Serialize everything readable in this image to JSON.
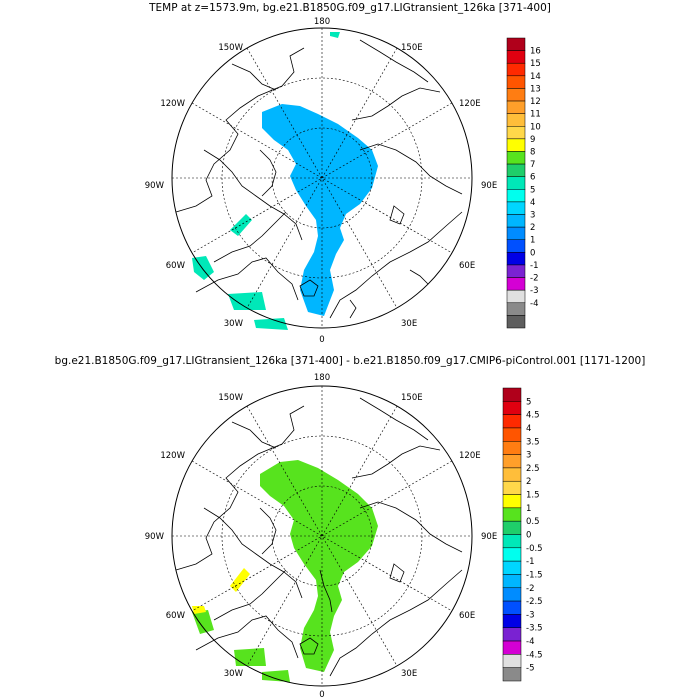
{
  "panels": [
    {
      "title": "TEMP at z=1573.9m, bg.e21.B1850G.f09_g17.LIGtransient_126ka [371-400]",
      "longitude_labels": [
        "180",
        "150E",
        "120E",
        "90E",
        "60E",
        "30E",
        "0",
        "30W",
        "60W",
        "90W",
        "120W",
        "150W"
      ],
      "colorbar": {
        "labels": [
          "16",
          "15",
          "14",
          "13",
          "12",
          "11",
          "10",
          "9",
          "8",
          "7",
          "6",
          "5",
          "4",
          "3",
          "2",
          "1",
          "0",
          "-1",
          "-2",
          "-3",
          "-4"
        ],
        "colors": [
          "#b0001b",
          "#e00010",
          "#ff2a00",
          "#ff5500",
          "#ff7d12",
          "#ff9f2a",
          "#ffbe3a",
          "#ffd84a",
          "#ffff00",
          "#57e31e",
          "#1fce6a",
          "#00e8b8",
          "#00ffee",
          "#00d6ff",
          "#00b6ff",
          "#008cff",
          "#0050ff",
          "#0000e6",
          "#7a22d2",
          "#d400d4",
          "#e0e0e0",
          "#8a8a8a",
          "#5e5e5e"
        ]
      }
    },
    {
      "title": "bg.e21.B1850G.f09_g17.LIGtransient_126ka [371-400] - b.e21.B1850.f09_g17.CMIP6-piControl.001 [1171-1200]",
      "longitude_labels": [
        "180",
        "150E",
        "120E",
        "90E",
        "60E",
        "30E",
        "0",
        "30W",
        "60W",
        "90W",
        "120W",
        "150W"
      ],
      "colorbar": {
        "labels": [
          "5",
          "4.5",
          "4",
          "3.5",
          "3",
          "2.5",
          "2",
          "1.5",
          "1",
          "0.5",
          "0",
          "-0.5",
          "-1",
          "-1.5",
          "-2",
          "-2.5",
          "-3",
          "-3.5",
          "-4",
          "-4.5",
          "-5"
        ],
        "colors": [
          "#b0001b",
          "#e00010",
          "#ff2a00",
          "#ff5500",
          "#ff7d12",
          "#ff9f2a",
          "#ffbe3a",
          "#ffd84a",
          "#ffff00",
          "#57e31e",
          "#1fce6a",
          "#00e8b8",
          "#00ffee",
          "#00d6ff",
          "#00b6ff",
          "#008cff",
          "#0050ff",
          "#0000e6",
          "#7a22d2",
          "#d400d4",
          "#e0e0e0",
          "#8a8a8a"
        ]
      }
    }
  ],
  "field_colors": {
    "top_main": "#00b6ff",
    "top_side": "#00e8b8",
    "bottom_main": "#57e31e",
    "bottom_warm": "#ffff00"
  }
}
